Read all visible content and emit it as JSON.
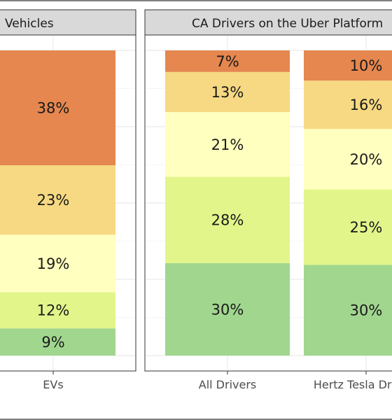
{
  "chart_data": {
    "type": "bar",
    "stacked": true,
    "percent": true,
    "grid": true,
    "legend": "none",
    "colors": [
      "#a1d68f",
      "#e2f58b",
      "#ffffbf",
      "#f6d982",
      "#e5874f"
    ],
    "panels": [
      {
        "title": "Vehicles",
        "categories": [
          "EVs"
        ],
        "segments": [
          [
            9,
            12,
            19,
            23,
            38
          ]
        ],
        "labels": [
          [
            "9%",
            "12%",
            "19%",
            "23%",
            "38%"
          ]
        ]
      },
      {
        "title": "CA Drivers on the Uber Platform",
        "categories": [
          "All Drivers",
          "Hertz Tesla Drivers"
        ],
        "segments": [
          [
            30,
            28,
            21,
            13,
            7
          ],
          [
            30,
            25,
            20,
            16,
            10
          ]
        ],
        "labels": [
          [
            "30%",
            "28%",
            "21%",
            "13%",
            "7%"
          ],
          [
            "30%",
            "25%",
            "20%",
            "16%",
            "10%"
          ]
        ]
      }
    ],
    "ylim": [
      0,
      100
    ]
  }
}
